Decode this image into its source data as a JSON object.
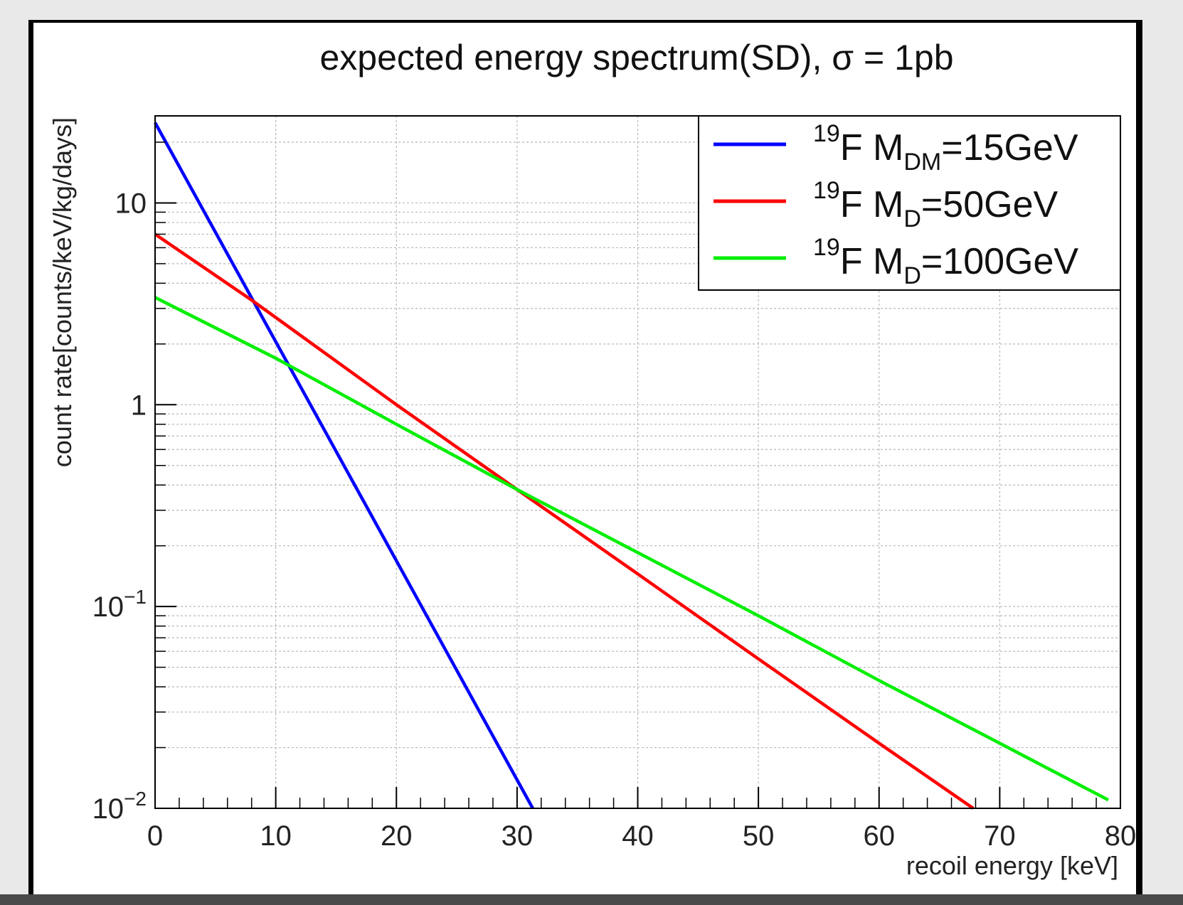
{
  "chart_data": {
    "type": "line",
    "title": "expected energy spectrum(SD), σ = 1pb",
    "xlabel": "recoil energy [keV]",
    "ylabel": "count rate[counts/keV/kg/days]",
    "xlim": [
      0,
      80
    ],
    "ylim": [
      0.01,
      27
    ],
    "yscale": "log",
    "grid": true,
    "legend_position": "top-right",
    "x_ticks": [
      "0",
      "10",
      "20",
      "30",
      "40",
      "50",
      "60",
      "70",
      "80"
    ],
    "y_ticks": [
      {
        "value": 10,
        "base": "10",
        "exp": ""
      },
      {
        "value": 1,
        "base": "1",
        "exp": ""
      },
      {
        "value": 0.1,
        "base": "10",
        "exp": "−1"
      },
      {
        "value": 0.01,
        "base": "10",
        "exp": "−2"
      }
    ],
    "series": [
      {
        "name": "19F MDM=15GeV",
        "legend": {
          "sup": "19",
          "main": "F M",
          "sub": "DM",
          "rest": "=15GeV"
        },
        "color": "#0000ff",
        "x": [
          0,
          31.3
        ],
        "y": [
          25,
          0.01
        ]
      },
      {
        "name": "19F MD=50GeV",
        "legend": {
          "sup": "19",
          "main": "F M",
          "sub": "D",
          "rest": "=50GeV"
        },
        "color": "#ff0000",
        "x": [
          0,
          8,
          20,
          30,
          40,
          50,
          60,
          67.8
        ],
        "y": [
          7,
          3.3,
          1.0,
          0.38,
          0.145,
          0.055,
          0.021,
          0.01
        ]
      },
      {
        "name": "19F MD=100GeV",
        "legend": {
          "sup": "19",
          "main": "F M",
          "sub": "D",
          "rest": "=100GeV"
        },
        "color": "#00ee00",
        "x": [
          0,
          10,
          20,
          30,
          40,
          50,
          60,
          70,
          79
        ],
        "y": [
          3.4,
          1.7,
          0.8,
          0.38,
          0.185,
          0.09,
          0.043,
          0.021,
          0.011
        ]
      }
    ]
  }
}
